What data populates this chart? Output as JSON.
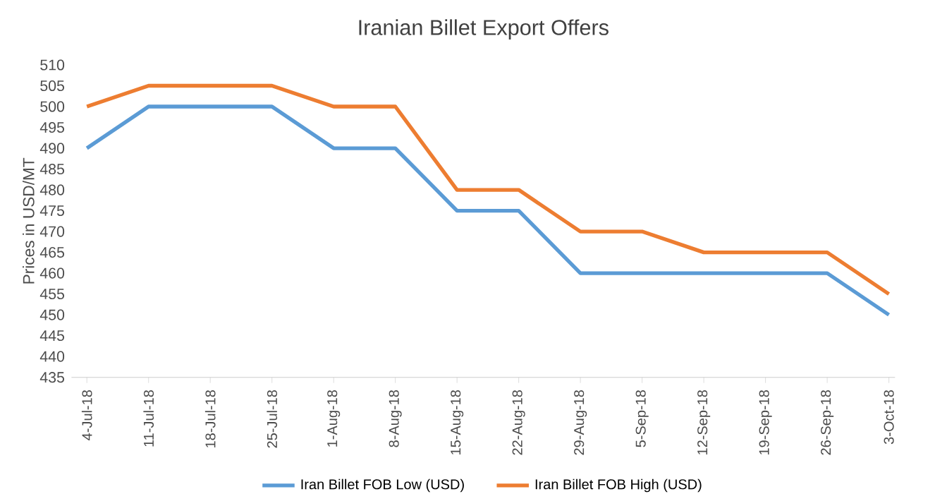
{
  "chart_data": {
    "type": "line",
    "title": "Iranian Billet Export Offers",
    "ylabel": "Prices in USD/MT",
    "categories": [
      "4-Jul-18",
      "11-Jul-18",
      "18-Jul-18",
      "25-Jul-18",
      "1-Aug-18",
      "8-Aug-18",
      "15-Aug-18",
      "22-Aug-18",
      "29-Aug-18",
      "5-Sep-18",
      "12-Sep-18",
      "19-Sep-18",
      "26-Sep-18",
      "3-Oct-18"
    ],
    "series": [
      {
        "name": "Iran Billet FOB Low (USD)",
        "color": "#5b9bd5",
        "values": [
          490,
          500,
          500,
          500,
          490,
          490,
          475,
          475,
          460,
          460,
          460,
          460,
          460,
          450
        ]
      },
      {
        "name": "Iran Billet FOB High (USD)",
        "color": "#ed7d31",
        "values": [
          500,
          505,
          505,
          505,
          500,
          500,
          480,
          480,
          470,
          470,
          465,
          465,
          465,
          455
        ]
      }
    ],
    "ylim": [
      435,
      510
    ],
    "yticks": [
      435,
      440,
      445,
      450,
      455,
      460,
      465,
      470,
      475,
      480,
      485,
      490,
      495,
      500,
      505,
      510
    ],
    "grid": false,
    "legend": "bottom",
    "marker": "none",
    "line_style": "solid"
  }
}
